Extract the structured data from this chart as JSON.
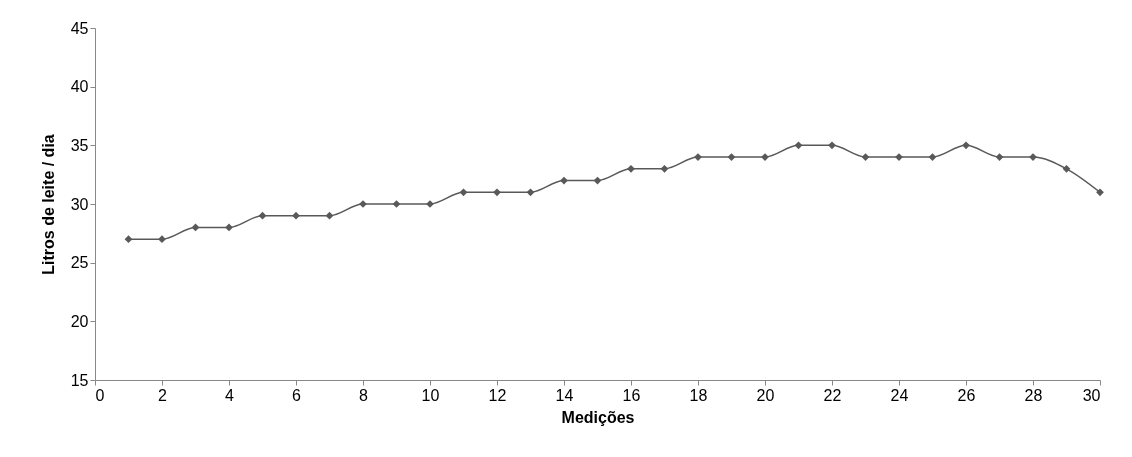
{
  "chart_data": {
    "type": "line",
    "xlabel": "Medições",
    "ylabel": "Litros de leite / dia",
    "x": [
      1,
      2,
      3,
      4,
      5,
      6,
      7,
      8,
      9,
      10,
      11,
      12,
      13,
      14,
      15,
      16,
      17,
      18,
      19,
      20,
      21,
      22,
      23,
      24,
      25,
      26,
      27,
      28,
      29,
      30
    ],
    "series": [
      {
        "color": "#595959",
        "values": [
          27,
          27,
          28,
          28,
          29,
          29,
          29,
          30,
          30,
          30,
          31,
          31,
          31,
          32,
          32,
          33,
          33,
          34,
          34,
          34,
          35,
          35,
          34,
          34,
          34,
          35,
          34,
          34,
          33,
          31
        ]
      }
    ],
    "xlim": [
      0,
      30
    ],
    "xticks": [
      0,
      2,
      4,
      6,
      8,
      10,
      12,
      14,
      16,
      18,
      20,
      22,
      24,
      26,
      28,
      30
    ],
    "ylim": [
      15,
      45
    ],
    "yticks": [
      15,
      20,
      25,
      30,
      35,
      40,
      45
    ],
    "grid": false,
    "marker": "diamond",
    "line_style": "solid"
  }
}
